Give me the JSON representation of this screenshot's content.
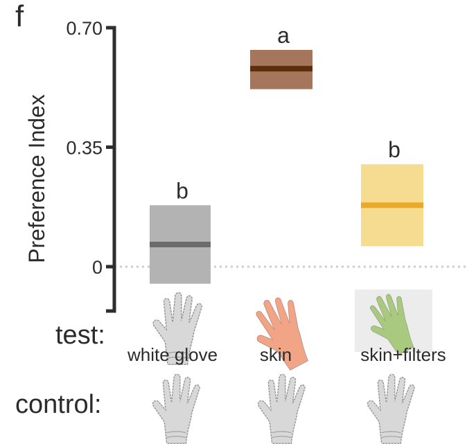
{
  "panel_label": "f",
  "row_labels": {
    "test": "test:",
    "control": "control:"
  },
  "chart_data": {
    "type": "box",
    "ylabel": "Preference Index",
    "ylim": [
      -0.13,
      0.7
    ],
    "yticks": [
      0,
      0.35,
      0.7
    ],
    "ytick_labels": [
      "0",
      "0.35",
      "0.70"
    ],
    "reference_line": {
      "y": 0,
      "style": "dotted",
      "color": "#cccccc"
    },
    "categories": [
      "white glove",
      "skin",
      "skin+filters"
    ],
    "series": [
      {
        "mean": 0.065,
        "low": -0.05,
        "high": 0.18,
        "fill": "#b3b3b3",
        "line": "#6b6b6b",
        "letter": "b"
      },
      {
        "mean": 0.58,
        "low": 0.52,
        "high": 0.635,
        "fill": "#a6765c",
        "line": "#5e2e0c",
        "letter": "a"
      },
      {
        "mean": 0.18,
        "low": 0.06,
        "high": 0.3,
        "fill": "#f5dc91",
        "line": "#eaa928",
        "letter": "b"
      }
    ]
  },
  "icons": {
    "test_row": [
      "white-glove-icon",
      "skin-hand-icon",
      "green-filtered-hand-icon"
    ],
    "control_row": [
      "white-glove-icon",
      "white-glove-icon",
      "white-glove-icon"
    ]
  }
}
